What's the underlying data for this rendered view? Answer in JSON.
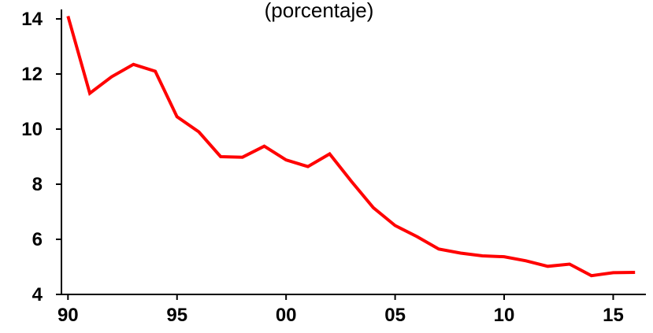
{
  "chart_data": {
    "type": "line",
    "title": "",
    "subtitle": "(porcentaje)",
    "xlabel": "",
    "ylabel": "",
    "x": [
      1990,
      1991,
      1992,
      1993,
      1994,
      1995,
      1996,
      1997,
      1998,
      1999,
      2000,
      2001,
      2002,
      2003,
      2004,
      2005,
      2006,
      2007,
      2008,
      2009,
      2010,
      2011,
      2012,
      2013,
      2014,
      2015,
      2016
    ],
    "series": [
      {
        "color": "#ff0000",
        "values": [
          14.1,
          11.3,
          11.9,
          12.35,
          12.1,
          10.45,
          9.9,
          9.0,
          8.98,
          9.38,
          8.88,
          8.64,
          9.1,
          8.1,
          7.15,
          6.5,
          6.1,
          5.65,
          5.5,
          5.4,
          5.37,
          5.22,
          5.02,
          5.1,
          4.68,
          4.79,
          4.8
        ]
      }
    ],
    "ylim": [
      4,
      14.5
    ],
    "yticks": [
      4,
      6,
      8,
      10,
      12,
      14
    ],
    "ytick_labels": [
      "4",
      "6",
      "8",
      "10",
      "12",
      "14"
    ],
    "xlim": [
      1989.7,
      2016.5
    ],
    "xticks": [
      1990,
      1995,
      2000,
      2005,
      2010,
      2015
    ],
    "xtick_labels": [
      "90",
      "95",
      "00",
      "05",
      "10",
      "15"
    ],
    "grid": false,
    "legend": "none"
  }
}
